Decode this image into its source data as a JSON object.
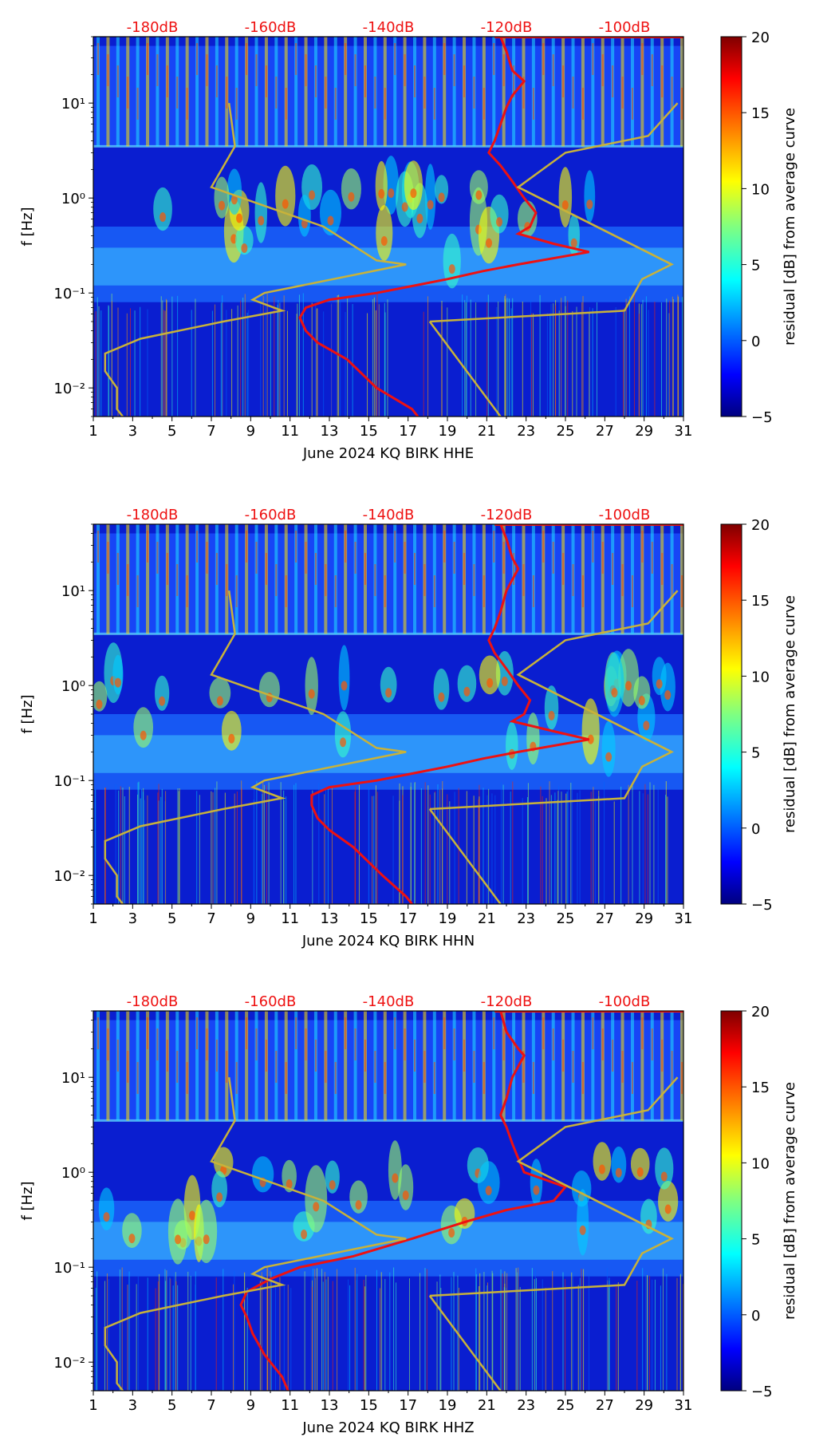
{
  "chart_data": [
    {
      "type": "heatmap",
      "panel": "HHE",
      "title": "",
      "xlabel": "June 2024 KQ BIRK  HHE",
      "ylabel": "f [Hz]",
      "x_ticks": [
        "1",
        "3",
        "5",
        "7",
        "9",
        "11",
        "13",
        "15",
        "17",
        "19",
        "21",
        "23",
        "25",
        "27",
        "29",
        "31"
      ],
      "xlim": [
        1,
        31
      ],
      "ylim": [
        0.005,
        50
      ],
      "y_scale": "log",
      "y_tick_labels": [
        "10⁻²",
        "10⁻¹",
        "10⁰",
        "10¹"
      ],
      "y_tick_values": [
        0.01,
        0.1,
        1,
        10
      ],
      "top_axis_labels": [
        "-180dB",
        "-160dB",
        "-140dB",
        "-120dB",
        "-100dB"
      ],
      "top_axis_values": [
        -180,
        -160,
        -140,
        -120,
        -100
      ],
      "top_axis_range": [
        -190,
        -90
      ],
      "colorbar": {
        "label": "residual [dB] from average curve",
        "ticks": [
          "20",
          "15",
          "10",
          "5",
          "0",
          "−5"
        ],
        "range": [
          -5,
          20
        ],
        "colormap": "jet"
      },
      "series": [
        {
          "name": "median PSD",
          "color": "#ee1111",
          "points": [
            [
              -121,
              50
            ],
            [
              -120,
              35
            ],
            [
              -119,
              22
            ],
            [
              -117,
              17
            ],
            [
              -119,
              12
            ],
            [
              -120,
              9
            ],
            [
              -121,
              6
            ],
            [
              -122,
              4
            ],
            [
              -123,
              3
            ],
            [
              -121,
              2.2
            ],
            [
              -119,
              1.5
            ],
            [
              -117,
              1.0
            ],
            [
              -115,
              0.7
            ],
            [
              -116,
              0.5
            ],
            [
              -118,
              0.42
            ],
            [
              -112,
              0.33
            ],
            [
              -106,
              0.27
            ],
            [
              -118,
              0.2
            ],
            [
              -124,
              0.17
            ],
            [
              -130,
              0.14
            ],
            [
              -142,
              0.1
            ],
            [
              -150,
              0.085
            ],
            [
              -154,
              0.07
            ],
            [
              -155,
              0.055
            ],
            [
              -154,
              0.04
            ],
            [
              -152,
              0.03
            ],
            [
              -147,
              0.02
            ],
            [
              -142,
              0.01
            ],
            [
              -136,
              0.006
            ],
            [
              -135,
              0.005
            ]
          ]
        },
        {
          "name": "NHNM / NLNM",
          "color": "#c8b23a",
          "points": [
            [
              -185,
              0.005
            ],
            [
              -186,
              0.006
            ],
            [
              -186,
              0.01
            ],
            [
              -188,
              0.015
            ],
            [
              -188,
              0.023
            ],
            [
              -182,
              0.033
            ],
            [
              -168,
              0.05
            ],
            [
              -158,
              0.065
            ],
            [
              -163,
              0.085
            ],
            [
              -161,
              0.1
            ],
            [
              -137,
              0.2
            ],
            [
              -142,
              0.22
            ],
            [
              -151,
              0.5
            ],
            [
              -170,
              1.3
            ],
            [
              -166,
              3.5
            ],
            [
              -167,
              10
            ],
            [
              -133,
              0.05
            ],
            [
              -100,
              0.065
            ],
            [
              -97,
              0.14
            ],
            [
              -92,
              0.2
            ],
            [
              -118,
              1.3
            ],
            [
              -110,
              3
            ],
            [
              -96,
              4.5
            ],
            [
              -91,
              10
            ]
          ]
        }
      ]
    },
    {
      "type": "heatmap",
      "panel": "HHN",
      "title": "",
      "xlabel": "June 2024 KQ BIRK  HHN",
      "ylabel": "f [Hz]",
      "x_ticks": [
        "1",
        "3",
        "5",
        "7",
        "9",
        "11",
        "13",
        "15",
        "17",
        "19",
        "21",
        "23",
        "25",
        "27",
        "29",
        "31"
      ],
      "xlim": [
        1,
        31
      ],
      "ylim": [
        0.005,
        50
      ],
      "y_scale": "log",
      "y_tick_labels": [
        "10⁻²",
        "10⁻¹",
        "10⁰",
        "10¹"
      ],
      "y_tick_values": [
        0.01,
        0.1,
        1,
        10
      ],
      "top_axis_labels": [
        "-180dB",
        "-160dB",
        "-140dB",
        "-120dB",
        "-100dB"
      ],
      "top_axis_values": [
        -180,
        -160,
        -140,
        -120,
        -100
      ],
      "top_axis_range": [
        -190,
        -90
      ],
      "colorbar": {
        "label": "residual [dB] from average curve",
        "ticks": [
          "20",
          "15",
          "10",
          "5",
          "0",
          "−5"
        ],
        "range": [
          -5,
          20
        ],
        "colormap": "jet"
      },
      "series": [
        {
          "name": "median PSD",
          "color": "#ee1111",
          "points": [
            [
              -121,
              50
            ],
            [
              -120,
              35
            ],
            [
              -119,
              22
            ],
            [
              -118,
              17
            ],
            [
              -120,
              10
            ],
            [
              -121,
              6
            ],
            [
              -122,
              4
            ],
            [
              -123,
              3
            ],
            [
              -122,
              2.2
            ],
            [
              -120,
              1.5
            ],
            [
              -118,
              1.0
            ],
            [
              -116,
              0.7
            ],
            [
              -117,
              0.5
            ],
            [
              -119,
              0.42
            ],
            [
              -112,
              0.33
            ],
            [
              -106,
              0.27
            ],
            [
              -118,
              0.2
            ],
            [
              -124,
              0.17
            ],
            [
              -130,
              0.14
            ],
            [
              -142,
              0.1
            ],
            [
              -150,
              0.085
            ],
            [
              -153,
              0.07
            ],
            [
              -153,
              0.055
            ],
            [
              -152,
              0.04
            ],
            [
              -150,
              0.03
            ],
            [
              -146,
              0.02
            ],
            [
              -141,
              0.01
            ],
            [
              -137,
              0.006
            ],
            [
              -136,
              0.005
            ]
          ]
        },
        {
          "name": "NHNM / NLNM",
          "color": "#c8b23a",
          "points": [
            [
              -185,
              0.005
            ],
            [
              -186,
              0.006
            ],
            [
              -186,
              0.01
            ],
            [
              -188,
              0.015
            ],
            [
              -188,
              0.023
            ],
            [
              -182,
              0.033
            ],
            [
              -168,
              0.05
            ],
            [
              -158,
              0.065
            ],
            [
              -163,
              0.085
            ],
            [
              -161,
              0.1
            ],
            [
              -137,
              0.2
            ],
            [
              -142,
              0.22
            ],
            [
              -151,
              0.5
            ],
            [
              -170,
              1.3
            ],
            [
              -166,
              3.5
            ],
            [
              -167,
              10
            ],
            [
              -133,
              0.05
            ],
            [
              -100,
              0.065
            ],
            [
              -97,
              0.14
            ],
            [
              -92,
              0.2
            ],
            [
              -118,
              1.3
            ],
            [
              -110,
              3
            ],
            [
              -96,
              4.5
            ],
            [
              -91,
              10
            ]
          ]
        }
      ]
    },
    {
      "type": "heatmap",
      "panel": "HHZ",
      "title": "",
      "xlabel": "June 2024 KQ BIRK  HHZ",
      "ylabel": "f [Hz]",
      "x_ticks": [
        "1",
        "3",
        "5",
        "7",
        "9",
        "11",
        "13",
        "15",
        "17",
        "19",
        "21",
        "23",
        "25",
        "27",
        "29",
        "31"
      ],
      "xlim": [
        1,
        31
      ],
      "ylim": [
        0.005,
        50
      ],
      "y_scale": "log",
      "y_tick_labels": [
        "10⁻²",
        "10⁻¹",
        "10⁰",
        "10¹"
      ],
      "y_tick_values": [
        0.01,
        0.1,
        1,
        10
      ],
      "top_axis_labels": [
        "-180dB",
        "-160dB",
        "-140dB",
        "-120dB",
        "-100dB"
      ],
      "top_axis_values": [
        -180,
        -160,
        -140,
        -120,
        -100
      ],
      "top_axis_range": [
        -190,
        -90
      ],
      "colorbar": {
        "label": "residual [dB] from average curve",
        "ticks": [
          "20",
          "15",
          "10",
          "5",
          "0",
          "−5"
        ],
        "range": [
          -5,
          20
        ],
        "colormap": "jet"
      },
      "series": [
        {
          "name": "median PSD",
          "color": "#ee1111",
          "points": [
            [
              -121,
              50
            ],
            [
              -120,
              30
            ],
            [
              -118,
              20
            ],
            [
              -117,
              17
            ],
            [
              -119,
              10
            ],
            [
              -120,
              6
            ],
            [
              -121,
              4
            ],
            [
              -120,
              3
            ],
            [
              -119,
              2
            ],
            [
              -118,
              1.4
            ],
            [
              -117,
              1.0
            ],
            [
              -110,
              0.7
            ],
            [
              -112,
              0.5
            ],
            [
              -120,
              0.4
            ],
            [
              -127,
              0.3
            ],
            [
              -136,
              0.2
            ],
            [
              -146,
              0.13
            ],
            [
              -155,
              0.1
            ],
            [
              -160,
              0.075
            ],
            [
              -164,
              0.055
            ],
            [
              -165,
              0.04
            ],
            [
              -164,
              0.03
            ],
            [
              -163,
              0.02
            ],
            [
              -161,
              0.012
            ],
            [
              -158,
              0.007
            ],
            [
              -157,
              0.005
            ]
          ]
        },
        {
          "name": "NHNM / NLNM",
          "color": "#c8b23a",
          "points": [
            [
              -185,
              0.005
            ],
            [
              -186,
              0.006
            ],
            [
              -186,
              0.01
            ],
            [
              -188,
              0.015
            ],
            [
              -188,
              0.023
            ],
            [
              -182,
              0.033
            ],
            [
              -168,
              0.05
            ],
            [
              -158,
              0.065
            ],
            [
              -163,
              0.085
            ],
            [
              -161,
              0.1
            ],
            [
              -137,
              0.2
            ],
            [
              -142,
              0.22
            ],
            [
              -151,
              0.5
            ],
            [
              -170,
              1.3
            ],
            [
              -166,
              3.5
            ],
            [
              -167,
              10
            ],
            [
              -133,
              0.05
            ],
            [
              -100,
              0.065
            ],
            [
              -97,
              0.14
            ],
            [
              -92,
              0.2
            ],
            [
              -118,
              1.3
            ],
            [
              -110,
              3
            ],
            [
              -96,
              4.5
            ],
            [
              -91,
              10
            ]
          ]
        }
      ]
    }
  ]
}
